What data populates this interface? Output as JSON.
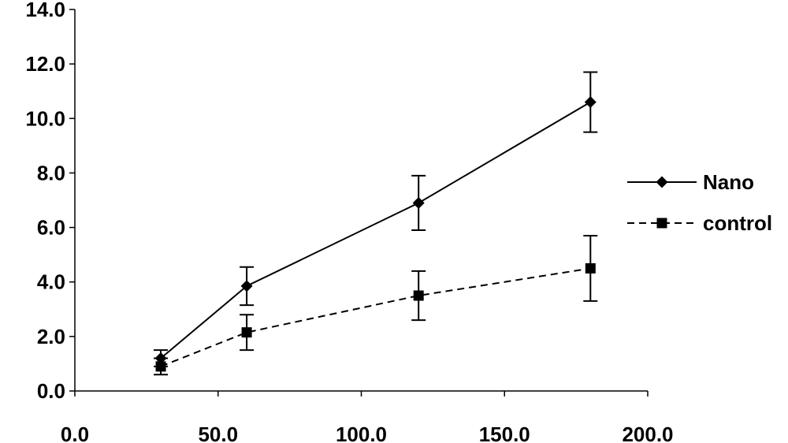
{
  "chart_data": {
    "type": "line",
    "title": "",
    "xlabel": "",
    "ylabel": "",
    "xlim": [
      0,
      200
    ],
    "ylim": [
      0,
      14
    ],
    "x_ticks": [
      0,
      50,
      100,
      150,
      200
    ],
    "y_ticks": [
      0,
      2,
      4,
      6,
      8,
      10,
      12,
      14
    ],
    "x_tick_labels": [
      "0.0",
      "50.0",
      "100.0",
      "150.0",
      "200.0"
    ],
    "y_tick_labels": [
      "0.0",
      "2.0",
      "4.0",
      "6.0",
      "8.0",
      "10.0",
      "12.0",
      "14.0"
    ],
    "grid": false,
    "legend_position": "right",
    "series": [
      {
        "name": "Nano",
        "marker": "diamond",
        "line_style": "solid",
        "color": "#000000",
        "points": [
          {
            "x": 30,
            "y": 1.2,
            "err": 0.3
          },
          {
            "x": 60,
            "y": 3.85,
            "err": 0.7
          },
          {
            "x": 120,
            "y": 6.9,
            "err": 1.0
          },
          {
            "x": 180,
            "y": 10.6,
            "err": 1.1
          }
        ]
      },
      {
        "name": "control",
        "marker": "square",
        "line_style": "dashed",
        "color": "#000000",
        "points": [
          {
            "x": 30,
            "y": 0.9,
            "err": 0.3
          },
          {
            "x": 60,
            "y": 2.15,
            "err": 0.65
          },
          {
            "x": 120,
            "y": 3.5,
            "err": 0.9
          },
          {
            "x": 180,
            "y": 4.5,
            "err": 1.2
          }
        ]
      }
    ]
  }
}
